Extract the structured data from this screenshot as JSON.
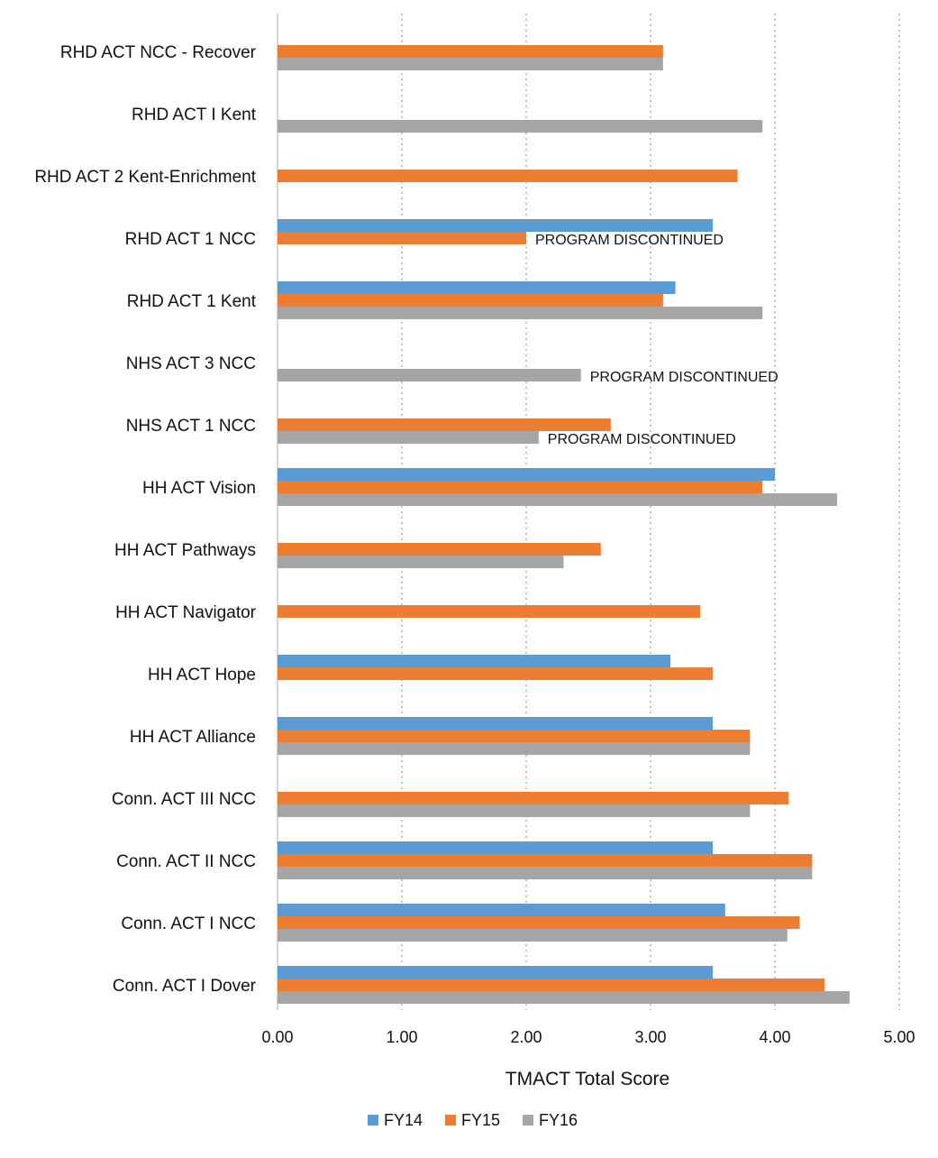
{
  "chart_data": {
    "type": "bar",
    "orientation": "horizontal",
    "title": "",
    "xlabel": "TMACT Total Score",
    "ylabel": "",
    "xlim": [
      0,
      5
    ],
    "x_ticks": [
      "0.00",
      "1.00",
      "2.00",
      "3.00",
      "4.00",
      "5.00"
    ],
    "grid": "vertical dotted",
    "legend_position": "bottom",
    "categories": [
      "RHD ACT NCC - Recover",
      "RHD ACT I Kent",
      "RHD ACT 2 Kent-Enrichment",
      "RHD ACT 1 NCC",
      "RHD ACT 1 Kent",
      "NHS ACT 3 NCC",
      "NHS ACT 1 NCC",
      "HH ACT Vision",
      "HH ACT Pathways",
      "HH ACT Navigator",
      "HH ACT Hope",
      "HH ACT Alliance",
      "Conn. ACT III NCC",
      "Conn. ACT II NCC",
      "Conn. ACT I NCC",
      "Conn. ACT I Dover"
    ],
    "series": [
      {
        "name": "FY14",
        "color": "#5b9bd5",
        "values": [
          null,
          null,
          null,
          3.5,
          3.2,
          null,
          null,
          4.0,
          null,
          null,
          3.16,
          3.5,
          null,
          3.5,
          3.6,
          3.5
        ]
      },
      {
        "name": "FY15",
        "color": "#ed7d31",
        "values": [
          3.1,
          null,
          3.7,
          2.0,
          3.1,
          null,
          2.68,
          3.9,
          2.6,
          3.4,
          3.5,
          3.8,
          4.11,
          4.3,
          4.2,
          4.4
        ]
      },
      {
        "name": "FY16",
        "color": "#a5a5a5",
        "values": [
          3.1,
          3.9,
          null,
          null,
          3.9,
          2.44,
          2.1,
          4.5,
          2.3,
          null,
          null,
          3.8,
          3.8,
          4.3,
          4.1,
          4.6
        ]
      }
    ],
    "annotations": [
      {
        "category": "RHD ACT 1 NCC",
        "series": "FY15",
        "text": "PROGRAM DISCONTINUED"
      },
      {
        "category": "NHS ACT 3 NCC",
        "series": "FY16",
        "text": "PROGRAM DISCONTINUED"
      },
      {
        "category": "NHS ACT 1 NCC",
        "series": "FY16",
        "text": "PROGRAM DISCONTINUED"
      }
    ]
  }
}
